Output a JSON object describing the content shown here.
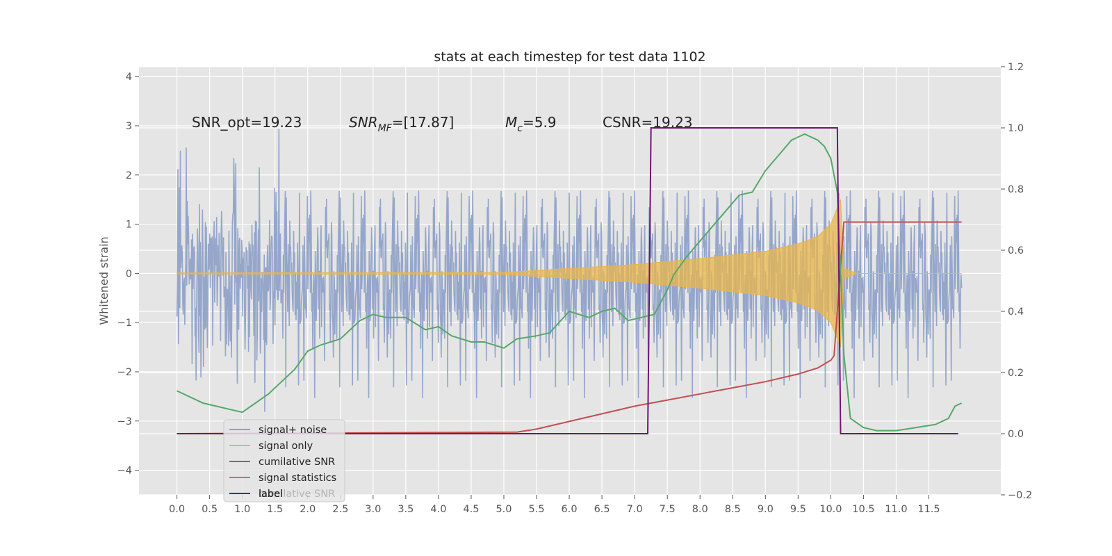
{
  "chart_data": {
    "type": "line",
    "title": "stats at each timestep for test data 1102",
    "ylabel": "Whitened strain",
    "xlim": [
      -0.58,
      12.6
    ],
    "ylim": [
      -4.5,
      4.2
    ],
    "y2lim": [
      -0.2,
      1.2
    ],
    "x_ticks": [
      "0.0",
      "0.5",
      "1.0",
      "1.5",
      "2.0",
      "2.5",
      "3.0",
      "3.5",
      "4.0",
      "4.5",
      "5.0",
      "5.5",
      "6.0",
      "6.5",
      "7.0",
      "7.5",
      "8.0",
      "8.5",
      "9.0",
      "9.5",
      "10.0",
      "10.5",
      "11.0",
      "11.5"
    ],
    "y_ticks": [
      "4",
      "3",
      "2",
      "1",
      "0",
      "−1",
      "−2",
      "−3",
      "−4"
    ],
    "y2_ticks": [
      "1.2",
      "1.0",
      "0.8",
      "0.6",
      "0.4",
      "0.2",
      "0.0",
      "−0.2"
    ],
    "grid": true,
    "legend_placement": "lower-left",
    "background_color": "#e5e5e5",
    "annotations": [
      {
        "id": "snr-opt",
        "text": "SNR_opt=19.23"
      },
      {
        "id": "snr-mf",
        "text": "SNR_MF=[17.87]"
      },
      {
        "id": "mc",
        "text": "M_c=5.9"
      },
      {
        "id": "csnr",
        "text": "CSNR=19.23"
      }
    ],
    "series": [
      {
        "name": "signal+ noise",
        "color": "#8c9fc6",
        "axis": "left",
        "noise_sigma": 1.0,
        "time_span": [
          0.0,
          12.0
        ]
      },
      {
        "name": "signal only",
        "color": "#e9b54a",
        "axis": "left",
        "envelope": [
          [
            0.0,
            0.01
          ],
          [
            5.0,
            0.02
          ],
          [
            6.0,
            0.1
          ],
          [
            7.0,
            0.18
          ],
          [
            8.0,
            0.3
          ],
          [
            9.0,
            0.45
          ],
          [
            9.5,
            0.6
          ],
          [
            9.8,
            0.75
          ],
          [
            10.0,
            1.0
          ],
          [
            10.15,
            1.5
          ],
          [
            10.2,
            0.1
          ],
          [
            10.4,
            0.0
          ],
          [
            12.0,
            0.0
          ]
        ]
      },
      {
        "name": "cumilative SNR",
        "color": "#c44e52",
        "axis": "right",
        "x": [
          0.0,
          5.2,
          5.5,
          6.0,
          6.5,
          7.0,
          7.5,
          8.0,
          8.5,
          9.0,
          9.5,
          9.8,
          10.0,
          10.05,
          10.2,
          12.0
        ],
        "y": [
          0.0,
          0.005,
          0.015,
          0.04,
          0.065,
          0.09,
          0.11,
          0.13,
          0.15,
          0.17,
          0.195,
          0.215,
          0.24,
          0.255,
          0.692,
          0.692
        ]
      },
      {
        "name": "signal statistics",
        "color": "#55a868",
        "axis": "right",
        "x": [
          0.0,
          0.2,
          0.4,
          0.6,
          0.8,
          1.0,
          1.2,
          1.4,
          1.6,
          1.8,
          2.0,
          2.2,
          2.5,
          2.8,
          3.0,
          3.2,
          3.5,
          3.8,
          4.0,
          4.2,
          4.5,
          4.7,
          5.0,
          5.2,
          5.5,
          5.7,
          6.0,
          6.3,
          6.5,
          6.7,
          6.9,
          7.1,
          7.3,
          7.5,
          7.6,
          7.8,
          8.0,
          8.2,
          8.4,
          8.6,
          8.8,
          9.0,
          9.2,
          9.4,
          9.6,
          9.8,
          9.9,
          10.0,
          10.1,
          10.2,
          10.3,
          10.5,
          10.7,
          11.0,
          11.3,
          11.6,
          11.8,
          11.9,
          12.0
        ],
        "y": [
          0.14,
          0.12,
          0.1,
          0.09,
          0.08,
          0.07,
          0.1,
          0.13,
          0.17,
          0.21,
          0.27,
          0.29,
          0.31,
          0.37,
          0.39,
          0.38,
          0.38,
          0.34,
          0.35,
          0.32,
          0.3,
          0.3,
          0.28,
          0.31,
          0.32,
          0.33,
          0.4,
          0.38,
          0.4,
          0.41,
          0.37,
          0.38,
          0.39,
          0.47,
          0.52,
          0.58,
          0.63,
          0.68,
          0.73,
          0.78,
          0.79,
          0.86,
          0.91,
          0.96,
          0.98,
          0.96,
          0.94,
          0.9,
          0.79,
          0.26,
          0.05,
          0.02,
          0.01,
          0.01,
          0.02,
          0.03,
          0.05,
          0.09,
          0.1
        ]
      },
      {
        "name": "label",
        "color": "#701670",
        "axis": "right",
        "x": [
          0.0,
          7.2,
          7.25,
          10.1,
          10.15,
          11.95
        ],
        "y": [
          0.0,
          0.0,
          1.0,
          1.0,
          0.0,
          0.0
        ]
      }
    ],
    "legend_ghost_text": "cumilative SNR"
  }
}
